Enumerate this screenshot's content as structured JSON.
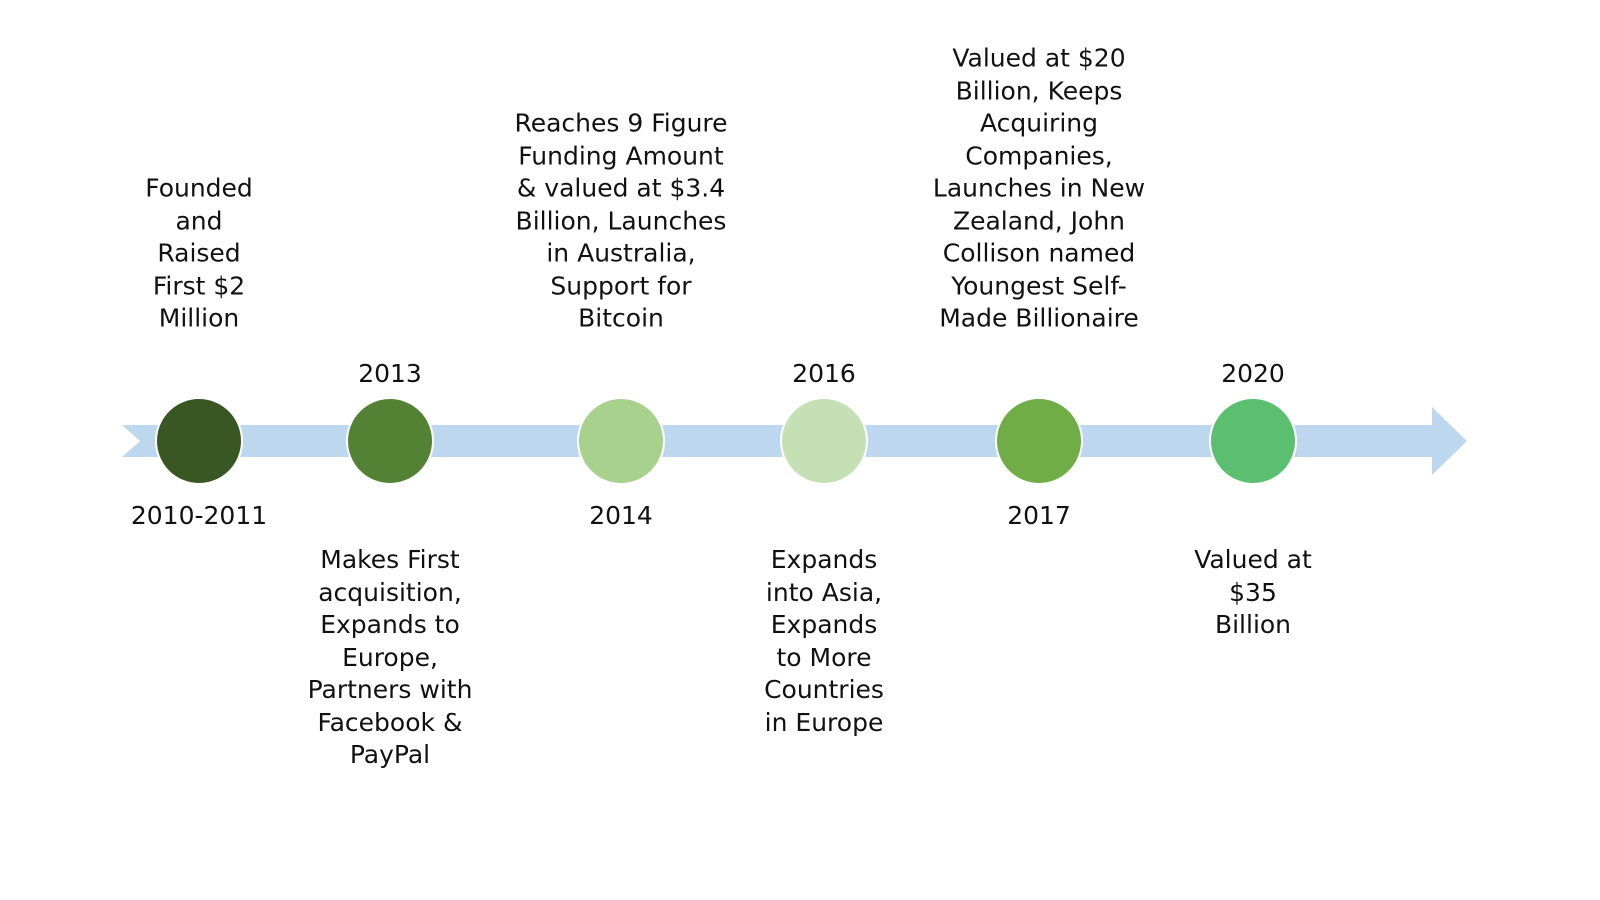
{
  "colors": {
    "arrow": "#bdd7ee",
    "background": "#ffffff"
  },
  "milestones": [
    {
      "year": "2010-2011",
      "color": "#385723",
      "lines": [
        "Founded",
        "and",
        "Raised",
        "First $2",
        "Million"
      ]
    },
    {
      "year": "2013",
      "color": "#548235",
      "lines": [
        "Makes First",
        "acquisition,",
        "Expands to",
        "Europe,",
        "Partners with",
        "Facebook &",
        "PayPal"
      ]
    },
    {
      "year": "2014",
      "color": "#a9d18e",
      "lines": [
        "Reaches 9 Figure",
        "Funding Amount",
        "& valued at $3.4",
        "Billion, Launches",
        "in Australia,",
        "Support for",
        "Bitcoin"
      ]
    },
    {
      "year": "2016",
      "color": "#c5e0b4",
      "lines": [
        "Expands",
        "into Asia,",
        "Expands",
        "to More",
        "Countries",
        "in Europe"
      ]
    },
    {
      "year": "2017",
      "color": "#70ad47",
      "lines": [
        "Valued at $20",
        "Billion, Keeps",
        "Acquiring",
        "Companies,",
        "Launches in New",
        "Zealand, John",
        "Collison named",
        "Youngest Self-",
        "Made Billionaire"
      ]
    },
    {
      "year": "2020",
      "color": "#5abf6f",
      "lines": [
        "Valued at",
        "$35",
        "Billion"
      ]
    }
  ]
}
